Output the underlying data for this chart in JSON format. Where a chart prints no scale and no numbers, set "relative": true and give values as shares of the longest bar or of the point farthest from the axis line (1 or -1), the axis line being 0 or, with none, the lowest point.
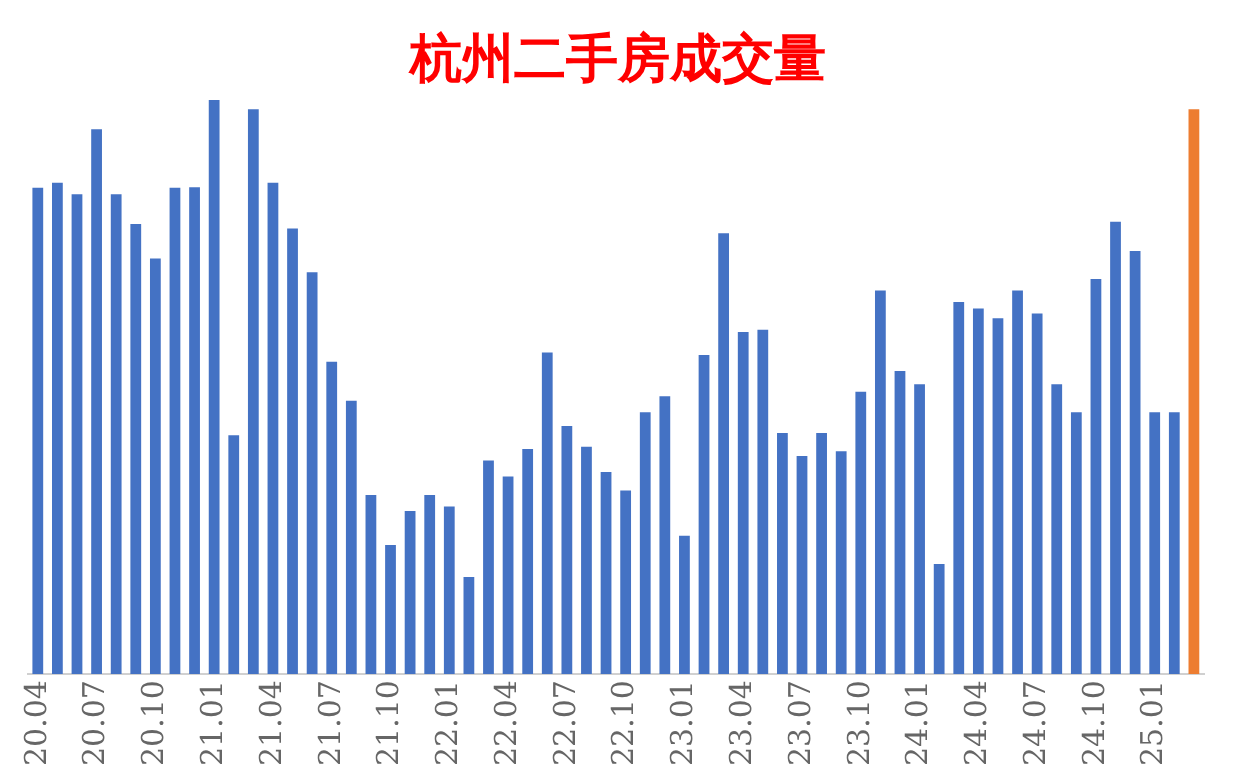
{
  "chart_data": {
    "type": "bar",
    "title": "杭州二手房成交量",
    "relative": true,
    "categories": [
      "20.04",
      null,
      null,
      "20.07",
      null,
      null,
      "20.10",
      null,
      null,
      "21.01",
      null,
      null,
      "21.04",
      null,
      null,
      "21.07",
      null,
      null,
      "21.10",
      null,
      null,
      "22.01",
      null,
      null,
      "22.04",
      null,
      null,
      "22.07",
      null,
      null,
      "22.10",
      null,
      null,
      "23.01",
      null,
      null,
      "23.04",
      null,
      null,
      "23.07",
      null,
      null,
      "23.10",
      null,
      null,
      "24.01",
      null,
      null,
      "24.04",
      null,
      null,
      "24.07",
      null,
      null,
      "24.10",
      null,
      null,
      "25.01",
      null,
      null
    ],
    "values": [
      0.847,
      0.856,
      0.836,
      0.949,
      0.836,
      0.784,
      0.724,
      0.847,
      0.848,
      1,
      0.416,
      0.984,
      0.856,
      0.776,
      0.7,
      0.544,
      0.476,
      0.312,
      0.225,
      0.284,
      0.312,
      0.292,
      0.169,
      0.372,
      0.344,
      0.392,
      0.56,
      0.432,
      0.396,
      0.352,
      0.32,
      0.456,
      0.484,
      0.241,
      0.556,
      0.768,
      0.596,
      0.6,
      0.42,
      0.38,
      0.42,
      0.388,
      0.492,
      0.668,
      0.528,
      0.505,
      0.192,
      0.648,
      0.637,
      0.62,
      0.668,
      0.628,
      0.505,
      0.456,
      0.688,
      0.788,
      0.737,
      0.456,
      0.456,
      0.984
    ],
    "colors": [
      "#4472c4",
      "#4472c4",
      "#4472c4",
      "#4472c4",
      "#4472c4",
      "#4472c4",
      "#4472c4",
      "#4472c4",
      "#4472c4",
      "#4472c4",
      "#4472c4",
      "#4472c4",
      "#4472c4",
      "#4472c4",
      "#4472c4",
      "#4472c4",
      "#4472c4",
      "#4472c4",
      "#4472c4",
      "#4472c4",
      "#4472c4",
      "#4472c4",
      "#4472c4",
      "#4472c4",
      "#4472c4",
      "#4472c4",
      "#4472c4",
      "#4472c4",
      "#4472c4",
      "#4472c4",
      "#4472c4",
      "#4472c4",
      "#4472c4",
      "#4472c4",
      "#4472c4",
      "#4472c4",
      "#4472c4",
      "#4472c4",
      "#4472c4",
      "#4472c4",
      "#4472c4",
      "#4472c4",
      "#4472c4",
      "#4472c4",
      "#4472c4",
      "#4472c4",
      "#4472c4",
      "#4472c4",
      "#4472c4",
      "#4472c4",
      "#4472c4",
      "#4472c4",
      "#4472c4",
      "#4472c4",
      "#4472c4",
      "#4472c4",
      "#4472c4",
      "#4472c4",
      "#4472c4",
      "#ed7d31"
    ],
    "grid": false,
    "legend": false
  }
}
